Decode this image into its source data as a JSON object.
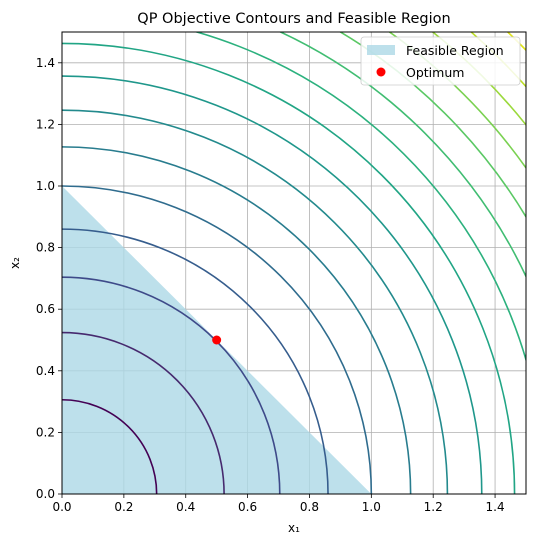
{
  "chart_data": {
    "type": "contour",
    "title": "QP Objective Contours and Feasible Region",
    "xlabel": "x₁",
    "ylabel": "x₂",
    "xlim": [
      0,
      1.5
    ],
    "ylim": [
      0,
      1.5
    ],
    "xticks": [
      "0.0",
      "0.2",
      "0.4",
      "0.6",
      "0.8",
      "1.0",
      "1.2",
      "1.4"
    ],
    "yticks": [
      "0.0",
      "0.2",
      "0.4",
      "0.6",
      "0.8",
      "1.0",
      "1.2",
      "1.4"
    ],
    "grid": true,
    "contour_levels_radius": [
      0.306,
      0.524,
      0.704,
      0.86,
      1.0,
      1.127,
      1.246,
      1.357,
      1.463,
      1.562,
      1.658,
      1.749,
      1.836,
      1.92,
      2.0,
      2.08
    ],
    "contour_colors": [
      "#440154",
      "#46296e",
      "#3e4a89",
      "#365d8d",
      "#2f6c8e",
      "#287c8e",
      "#238a8d",
      "#1f978b",
      "#21a585",
      "#2cb17e",
      "#40bd72",
      "#5ac864",
      "#7ad151",
      "#9bd93c",
      "#bddf26",
      "#dfe318"
    ],
    "feasible_region": {
      "label": "Feasible Region",
      "vertices": [
        [
          0,
          0
        ],
        [
          1,
          0
        ],
        [
          0,
          1
        ]
      ],
      "color": "#add8e6"
    },
    "optimum": {
      "label": "Optimum",
      "x": 0.5,
      "y": 0.5,
      "color": "#ff0000"
    },
    "legend_position": "top-right"
  }
}
